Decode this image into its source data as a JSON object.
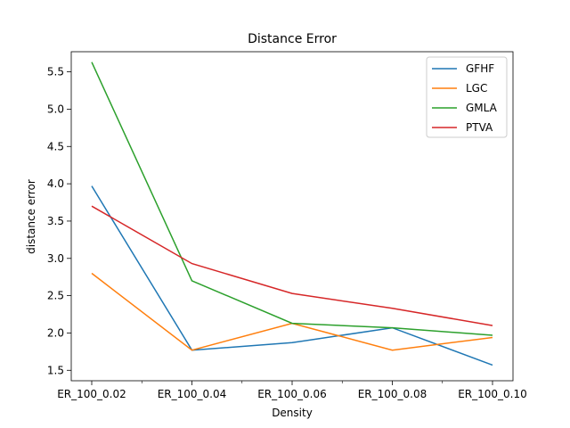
{
  "chart_data": {
    "type": "line",
    "title": "Distance Error",
    "xlabel": "Density",
    "ylabel": "distance error",
    "categories": [
      "ER_100_0.02",
      "ER_100_0.04",
      "ER_100_0.06",
      "ER_100_0.08",
      "ER_100_0.10"
    ],
    "ylim": [
      1.36,
      5.77
    ],
    "yticks": [
      1.5,
      2.0,
      2.5,
      3.0,
      3.5,
      4.0,
      4.5,
      5.0,
      5.5
    ],
    "ytick_labels": [
      "1.5",
      "2.0",
      "2.5",
      "3.0",
      "3.5",
      "4.0",
      "4.5",
      "5.0",
      "5.5"
    ],
    "grid": false,
    "legend_position": "top-right",
    "series": [
      {
        "name": "GFHF",
        "color": "#1f77b4",
        "values": [
          3.97,
          1.77,
          1.87,
          2.07,
          1.57
        ]
      },
      {
        "name": "LGC",
        "color": "#ff7f0e",
        "values": [
          2.8,
          1.77,
          2.13,
          1.77,
          1.94
        ]
      },
      {
        "name": "GMLA",
        "color": "#2ca02c",
        "values": [
          5.63,
          2.7,
          2.13,
          2.07,
          1.97
        ]
      },
      {
        "name": "PTVA",
        "color": "#d62728",
        "values": [
          3.7,
          2.93,
          2.53,
          2.33,
          2.1
        ]
      }
    ]
  }
}
